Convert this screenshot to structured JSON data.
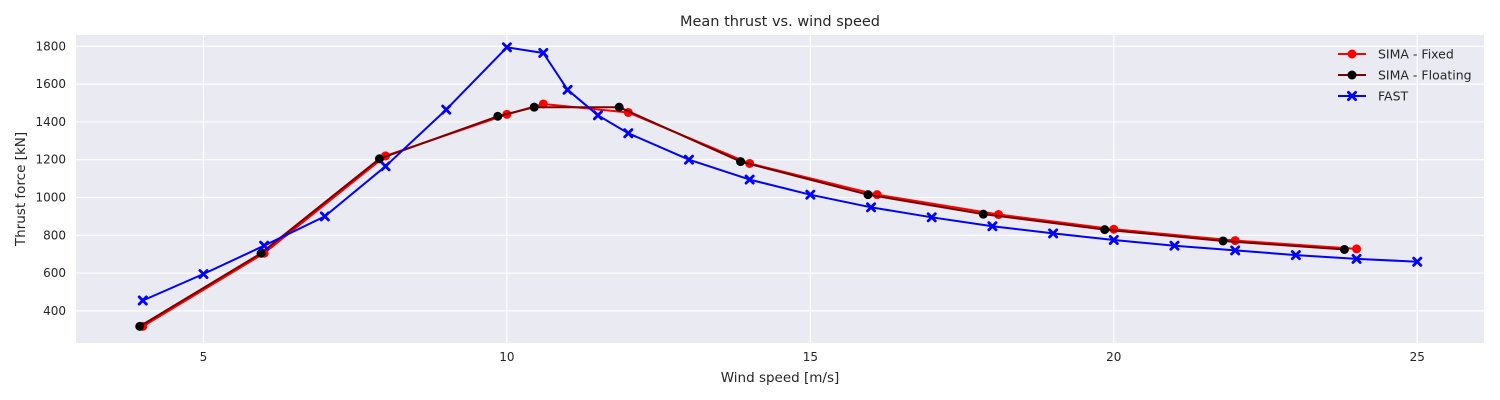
{
  "chart_data": {
    "type": "line",
    "title": "Mean thrust vs. wind speed",
    "xlabel": "Wind speed [m/s]",
    "ylabel": "Thrust force [kN]",
    "xlim": [
      2.9,
      26.1
    ],
    "ylim": [
      230,
      1860
    ],
    "xticks": [
      5,
      10,
      15,
      20,
      25
    ],
    "yticks": [
      400,
      600,
      800,
      1000,
      1200,
      1400,
      1600,
      1800
    ],
    "grid": true,
    "background": "#eaeaf2",
    "legend_position": "top-right",
    "series": [
      {
        "name": "SIMA - Fixed",
        "color": "#ff0000",
        "line_color": "#ff0000",
        "marker": "circle",
        "x": [
          4,
          6,
          8,
          10,
          10.6,
          12,
          14,
          16.1,
          18.1,
          20,
          22,
          24
        ],
        "y": [
          318,
          705,
          1220,
          1440,
          1495,
          1450,
          1180,
          1015,
          910,
          832,
          772,
          728
        ]
      },
      {
        "name": "SIMA - Floating",
        "color": "#000000",
        "line_color": "#7a0000",
        "marker": "circle",
        "x": [
          3.95,
          5.95,
          7.9,
          9.85,
          10.45,
          11.85,
          13.85,
          15.95,
          17.85,
          19.85,
          21.8,
          23.8
        ],
        "y": [
          318,
          705,
          1205,
          1430,
          1478,
          1478,
          1190,
          1015,
          912,
          830,
          770,
          725
        ]
      },
      {
        "name": "FAST",
        "color": "#0000ff",
        "line_color": "#0000ff",
        "marker": "x",
        "x": [
          4,
          5,
          6,
          7,
          8,
          9,
          10,
          10.6,
          11,
          11.5,
          12,
          13,
          14,
          15,
          16,
          17,
          18,
          19,
          20,
          21,
          22,
          23,
          24,
          25
        ],
        "y": [
          455,
          595,
          745,
          900,
          1165,
          1465,
          1795,
          1765,
          1570,
          1435,
          1340,
          1200,
          1095,
          1015,
          948,
          895,
          848,
          810,
          775,
          745,
          720,
          695,
          675,
          660
        ]
      }
    ]
  }
}
